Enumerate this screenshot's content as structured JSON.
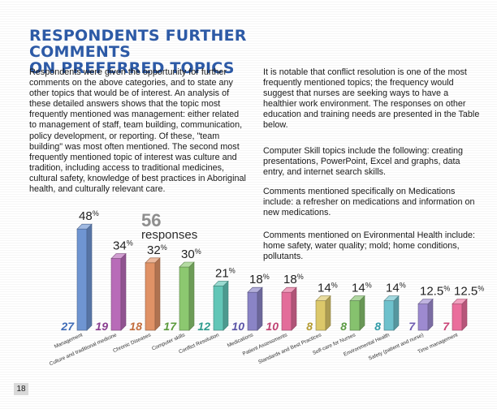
{
  "title_line1": "RESPONDENTS FURTHER COMMENTS",
  "title_line2": "ON PREFERRED TOPICS",
  "intro_text": "Respondents were given the opportunity for further comments on the above categories, and to state any other topics that would be of interest. An analysis of these detailed answers shows that the topic most frequently mentioned was management: either related to management of staff, team building, communication, policy development, or reporting. Of these, \"team building\" was most often mentioned. The second most frequently mentioned topic of interest was culture and tradition, including access to traditional medicines, cultural safety, knowledge of best practices in Aboriginal health, and culturally relevant care.",
  "right_paragraphs": [
    "It is notable that conflict resolution is one of the most frequently mentioned topics; the frequency would suggest that nurses are seeking ways to have a healthier work environment. The responses on other education and training needs are presented in the Table below.",
    "Computer Skill topics include the following: creating presentations, PowerPoint, Excel and graphs, data entry, and internet search skills.",
    "Comments mentioned specifically on Medications include: a refresher on medications and information on new medications.",
    "Comments mentioned  on Evironmental Health include: home safety, water quality; mold; home conditions, pollutants."
  ],
  "page_number": "18",
  "chart_data": {
    "type": "bar",
    "callout_number": "56",
    "callout_label": "responses",
    "categories": [
      "Management",
      "Culture and traditional medicine",
      "Chronic Diseases",
      "Computer skills",
      "Conflict Resolution",
      "Medications",
      "Patient Assessments",
      "Standards and Best Practices",
      "Self-care for Nurses",
      "Environmental Health",
      "Safety (patient and nurse)",
      "Time management"
    ],
    "percent_labels": [
      "48",
      "34",
      "32",
      "30",
      "21",
      "18",
      "18",
      "14",
      "14",
      "14",
      "12.5",
      "12.5"
    ],
    "percent_sign": "%",
    "values": [
      48,
      34,
      32,
      30,
      21,
      18,
      18,
      14,
      14,
      14,
      12.5,
      12.5
    ],
    "counts": [
      27,
      19,
      18,
      17,
      12,
      10,
      10,
      8,
      8,
      8,
      7,
      7
    ],
    "colors": [
      "#6f95d2",
      "#b86bb8",
      "#e09266",
      "#8cc870",
      "#62c6b7",
      "#8a84c6",
      "#e36d9a",
      "#dcc86a",
      "#86c26e",
      "#6ec1cc",
      "#9d8ad0",
      "#ea6e9c"
    ],
    "count_colors": [
      "#3f6bb6",
      "#8a3d8f",
      "#c26c3c",
      "#5b9a3c",
      "#2e9b8d",
      "#5a54a6",
      "#c04373",
      "#b39a30",
      "#5a9a42",
      "#2f9aa6",
      "#6e5bb0",
      "#c94376"
    ]
  }
}
